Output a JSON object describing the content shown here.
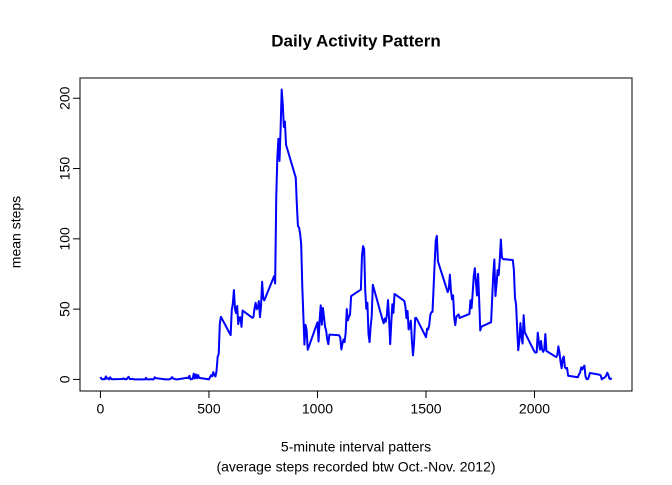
{
  "chart_data": {
    "type": "line",
    "title": "Daily Activity Pattern",
    "x_label": [
      "5-minute interval patters",
      "(average steps recorded btw Oct.-Nov. 2012)"
    ],
    "y_label": "mean steps",
    "color": "#0000ff",
    "x": [
      0,
      5,
      10,
      15,
      20,
      25,
      30,
      35,
      40,
      45,
      50,
      55,
      100,
      105,
      110,
      115,
      120,
      125,
      130,
      135,
      140,
      145,
      150,
      155,
      200,
      205,
      210,
      215,
      220,
      225,
      230,
      235,
      240,
      245,
      250,
      255,
      300,
      305,
      310,
      315,
      320,
      325,
      330,
      335,
      340,
      345,
      350,
      355,
      400,
      405,
      410,
      415,
      420,
      425,
      430,
      435,
      440,
      445,
      450,
      455,
      500,
      505,
      510,
      515,
      520,
      525,
      530,
      535,
      540,
      545,
      550,
      555,
      600,
      605,
      610,
      615,
      620,
      625,
      630,
      635,
      640,
      645,
      650,
      655,
      700,
      705,
      710,
      715,
      720,
      725,
      730,
      735,
      740,
      745,
      750,
      755,
      800,
      805,
      810,
      815,
      820,
      825,
      830,
      835,
      840,
      845,
      850,
      855,
      900,
      905,
      910,
      915,
      920,
      925,
      930,
      935,
      940,
      945,
      950,
      955,
      1000,
      1005,
      1010,
      1015,
      1020,
      1025,
      1030,
      1035,
      1040,
      1045,
      1050,
      1055,
      1100,
      1105,
      1110,
      1115,
      1120,
      1125,
      1130,
      1135,
      1140,
      1145,
      1150,
      1155,
      1200,
      1205,
      1210,
      1215,
      1220,
      1225,
      1230,
      1235,
      1240,
      1245,
      1250,
      1255,
      1300,
      1305,
      1310,
      1315,
      1320,
      1325,
      1330,
      1335,
      1340,
      1345,
      1350,
      1355,
      1400,
      1405,
      1410,
      1415,
      1420,
      1425,
      1430,
      1435,
      1440,
      1445,
      1450,
      1455,
      1500,
      1505,
      1510,
      1515,
      1520,
      1525,
      1530,
      1535,
      1540,
      1545,
      1550,
      1555,
      1600,
      1605,
      1610,
      1615,
      1620,
      1625,
      1630,
      1635,
      1640,
      1645,
      1650,
      1655,
      1700,
      1705,
      1710,
      1715,
      1720,
      1725,
      1730,
      1735,
      1740,
      1745,
      1750,
      1755,
      1800,
      1805,
      1810,
      1815,
      1820,
      1825,
      1830,
      1835,
      1840,
      1845,
      1850,
      1855,
      1900,
      1905,
      1910,
      1915,
      1920,
      1925,
      1930,
      1935,
      1940,
      1945,
      1950,
      1955,
      2000,
      2005,
      2010,
      2015,
      2020,
      2025,
      2030,
      2035,
      2040,
      2045,
      2050,
      2055,
      2100,
      2105,
      2110,
      2115,
      2120,
      2125,
      2130,
      2135,
      2140,
      2145,
      2150,
      2155,
      2200,
      2205,
      2210,
      2215,
      2220,
      2225,
      2230,
      2235,
      2240,
      2245,
      2250,
      2255,
      2300,
      2305,
      2310,
      2315,
      2320,
      2325,
      2330,
      2335,
      2340,
      2345,
      2350,
      2355
    ],
    "values": [
      1.7,
      0.3,
      0.1,
      0.2,
      0.1,
      2.1,
      0.5,
      0.9,
      0,
      1.5,
      0.3,
      0.1,
      0.3,
      0.7,
      0.2,
      0.3,
      0,
      1.1,
      1.8,
      0.2,
      0.2,
      0.4,
      0.3,
      0,
      0,
      0,
      1.1,
      0,
      0,
      0.1,
      0,
      0.2,
      0,
      0,
      1.5,
      0.9,
      0,
      0,
      0,
      0,
      0.2,
      0.6,
      1.6,
      0.6,
      0.5,
      0.1,
      0,
      0,
      1.2,
      0.9,
      2.6,
      0,
      0.3,
      0.4,
      4.1,
      0.7,
      3.5,
      0.8,
      3.1,
      1.1,
      0,
      1.6,
      3,
      2.2,
      5.2,
      3,
      2.1,
      6.1,
      16,
      18.3,
      39.5,
      44.5,
      31.5,
      49.3,
      53.8,
      63.5,
      50,
      47.1,
      52.2,
      39.3,
      44,
      44.2,
      37.4,
      49,
      43.8,
      44.4,
      50.5,
      54.5,
      49.9,
      51,
      55.7,
      44.3,
      52.3,
      69.5,
      57.8,
      56.2,
      73.4,
      68.2,
      129.4,
      157.5,
      171.2,
      155.4,
      177.3,
      206.2,
      195.9,
      179.6,
      183.4,
      167,
      143.5,
      124,
      109.1,
      108.1,
      103.7,
      95.9,
      66.2,
      45.2,
      24.8,
      38.8,
      35,
      21.1,
      40.6,
      27,
      42.4,
      52.7,
      38.9,
      50.8,
      44.3,
      37.4,
      34.7,
      28.3,
      25.1,
      31.9,
      31.4,
      29.7,
      21.3,
      25.5,
      28.4,
      26.5,
      33.4,
      50,
      42,
      44.6,
      46,
      59.3,
      63.9,
      87.7,
      94.8,
      92.8,
      63.4,
      50.2,
      54.5,
      32.4,
      26.5,
      37.7,
      45.1,
      67.3,
      42.3,
      39.9,
      43.3,
      41,
      46.2,
      56.4,
      42.8,
      25.1,
      40,
      53.5,
      47.3,
      60.8,
      55.8,
      52,
      43.6,
      48.7,
      35.5,
      37.5,
      41.8,
      27.5,
      17.1,
      26.1,
      43.6,
      43.8,
      30,
      36.1,
      35.5,
      38.8,
      46,
      47.8,
      48.1,
      65.3,
      82.9,
      98.7,
      102.1,
      84,
      62.1,
      64.1,
      74.5,
      63.2,
      56.9,
      59.8,
      43.9,
      38.6,
      44.7,
      45.5,
      46.2,
      43.7,
      46.6,
      56.3,
      50.7,
      61.2,
      73.4,
      79.1,
      68.9,
      59.7,
      75.1,
      56.5,
      34.8,
      37.5,
      40.7,
      58,
      74.7,
      85.3,
      59.3,
      67.8,
      77.7,
      74.2,
      85.3,
      99.5,
      86.6,
      85.6,
      84.9,
      77.8,
      58,
      53.4,
      36.3,
      20.7,
      27.4,
      40,
      30.2,
      25.5,
      45.7,
      33.5,
      19.6,
      19,
      19.3,
      33.3,
      26.8,
      21.2,
      27.3,
      21.3,
      19.6,
      21.3,
      32.3,
      20.2,
      15.9,
      17.2,
      23.5,
      19.2,
      12.5,
      8,
      14.7,
      16.3,
      8.7,
      7.8,
      8.1,
      2.6,
      1.5,
      3.7,
      4.8,
      8.5,
      7.1,
      8.7,
      9.8,
      2.2,
      0.3,
      0.1,
      1.6,
      4.6,
      3.3,
      2.8,
      0,
      0.8,
      1,
      1.6,
      2.6,
      4.7,
      3.3,
      0.6,
      0.2,
      1.1
    ],
    "xlim": [
      -94.2,
      2449.2
    ],
    "xticks": [
      0,
      500,
      1000,
      1500,
      2000
    ],
    "ylim": [
      -8.25,
      214.4
    ],
    "yticks": [
      0,
      50,
      100,
      150,
      200
    ]
  }
}
